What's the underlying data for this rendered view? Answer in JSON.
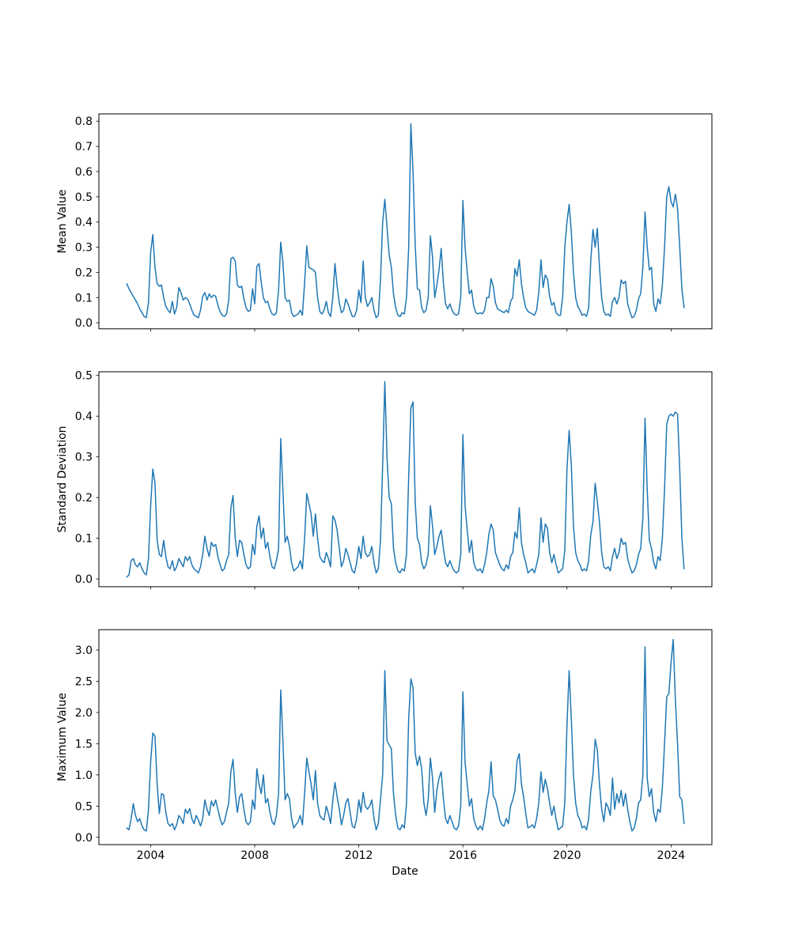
{
  "figure": {
    "background": "#ffffff",
    "title": ""
  },
  "x_axis": {
    "label": "Date",
    "tick_labels": [
      "2004",
      "2008",
      "2012",
      "2016",
      "2020",
      "2024"
    ],
    "tick_values": [
      2004,
      2008,
      2012,
      2016,
      2020,
      2024
    ],
    "xlim": [
      2002.01,
      2025.57
    ],
    "x_start_decimal_year": 2003.0833,
    "x_step_years": 0.0833333
  },
  "line_color": "#1f77b4",
  "chart_data": [
    {
      "type": "line",
      "title": "",
      "ylabel": "Mean Value",
      "xlabel": "",
      "legend": null,
      "grid": false,
      "ylim": [
        -0.024,
        0.829
      ],
      "ytick_values": [
        0.0,
        0.1,
        0.2,
        0.3,
        0.4,
        0.5,
        0.6,
        0.7,
        0.8
      ],
      "ytick_labels": [
        "0.0",
        "0.1",
        "0.2",
        "0.3",
        "0.4",
        "0.5",
        "0.6",
        "0.7",
        "0.8"
      ],
      "values": [
        0.155,
        0.135,
        0.12,
        0.105,
        0.09,
        0.075,
        0.055,
        0.04,
        0.025,
        0.02,
        0.08,
        0.28,
        0.35,
        0.22,
        0.155,
        0.145,
        0.15,
        0.1,
        0.065,
        0.05,
        0.04,
        0.085,
        0.035,
        0.06,
        0.14,
        0.12,
        0.09,
        0.1,
        0.095,
        0.075,
        0.05,
        0.03,
        0.025,
        0.02,
        0.05,
        0.105,
        0.12,
        0.09,
        0.115,
        0.1,
        0.11,
        0.105,
        0.07,
        0.045,
        0.03,
        0.025,
        0.035,
        0.09,
        0.255,
        0.26,
        0.245,
        0.15,
        0.14,
        0.145,
        0.095,
        0.06,
        0.045,
        0.05,
        0.135,
        0.075,
        0.225,
        0.235,
        0.16,
        0.1,
        0.08,
        0.085,
        0.055,
        0.035,
        0.03,
        0.04,
        0.13,
        0.32,
        0.24,
        0.1,
        0.085,
        0.09,
        0.04,
        0.025,
        0.03,
        0.035,
        0.05,
        0.03,
        0.16,
        0.305,
        0.22,
        0.215,
        0.21,
        0.2,
        0.1,
        0.045,
        0.035,
        0.05,
        0.085,
        0.04,
        0.025,
        0.1,
        0.235,
        0.145,
        0.08,
        0.04,
        0.05,
        0.095,
        0.075,
        0.05,
        0.025,
        0.025,
        0.05,
        0.13,
        0.08,
        0.245,
        0.1,
        0.065,
        0.08,
        0.1,
        0.05,
        0.02,
        0.03,
        0.17,
        0.4,
        0.49,
        0.38,
        0.27,
        0.22,
        0.115,
        0.06,
        0.03,
        0.025,
        0.04,
        0.035,
        0.1,
        0.3,
        0.79,
        0.6,
        0.31,
        0.135,
        0.13,
        0.06,
        0.04,
        0.05,
        0.1,
        0.345,
        0.26,
        0.1,
        0.15,
        0.21,
        0.295,
        0.16,
        0.075,
        0.055,
        0.075,
        0.05,
        0.035,
        0.03,
        0.035,
        0.1,
        0.485,
        0.3,
        0.2,
        0.115,
        0.13,
        0.065,
        0.04,
        0.035,
        0.04,
        0.035,
        0.05,
        0.1,
        0.1,
        0.175,
        0.145,
        0.08,
        0.055,
        0.05,
        0.045,
        0.04,
        0.05,
        0.04,
        0.085,
        0.1,
        0.215,
        0.185,
        0.25,
        0.155,
        0.1,
        0.06,
        0.045,
        0.04,
        0.035,
        0.03,
        0.05,
        0.12,
        0.25,
        0.14,
        0.19,
        0.175,
        0.105,
        0.07,
        0.08,
        0.04,
        0.03,
        0.03,
        0.1,
        0.3,
        0.4,
        0.47,
        0.36,
        0.2,
        0.1,
        0.065,
        0.05,
        0.03,
        0.035,
        0.025,
        0.06,
        0.25,
        0.37,
        0.3,
        0.375,
        0.22,
        0.1,
        0.045,
        0.03,
        0.035,
        0.025,
        0.085,
        0.1,
        0.075,
        0.1,
        0.17,
        0.155,
        0.165,
        0.075,
        0.045,
        0.02,
        0.025,
        0.05,
        0.095,
        0.115,
        0.22,
        0.44,
        0.3,
        0.21,
        0.22,
        0.075,
        0.045,
        0.095,
        0.075,
        0.15,
        0.3,
        0.5,
        0.54,
        0.48,
        0.46,
        0.51,
        0.455,
        0.3,
        0.135,
        0.06
      ]
    },
    {
      "type": "line",
      "title": "",
      "ylabel": "Standard Deviation",
      "xlabel": "",
      "legend": null,
      "grid": false,
      "ylim": [
        -0.019,
        0.509
      ],
      "ytick_values": [
        0.0,
        0.1,
        0.2,
        0.3,
        0.4,
        0.5
      ],
      "ytick_labels": [
        "0.0",
        "0.1",
        "0.2",
        "0.3",
        "0.4",
        "0.5"
      ],
      "values": [
        0.005,
        0.01,
        0.045,
        0.05,
        0.035,
        0.03,
        0.04,
        0.025,
        0.015,
        0.01,
        0.05,
        0.18,
        0.27,
        0.235,
        0.095,
        0.06,
        0.055,
        0.095,
        0.055,
        0.03,
        0.025,
        0.045,
        0.02,
        0.03,
        0.05,
        0.04,
        0.03,
        0.055,
        0.045,
        0.055,
        0.035,
        0.025,
        0.02,
        0.015,
        0.03,
        0.06,
        0.105,
        0.075,
        0.055,
        0.09,
        0.08,
        0.085,
        0.055,
        0.035,
        0.02,
        0.025,
        0.045,
        0.06,
        0.175,
        0.205,
        0.1,
        0.055,
        0.095,
        0.09,
        0.06,
        0.035,
        0.025,
        0.03,
        0.085,
        0.06,
        0.13,
        0.155,
        0.1,
        0.125,
        0.075,
        0.09,
        0.055,
        0.03,
        0.025,
        0.045,
        0.075,
        0.345,
        0.22,
        0.09,
        0.105,
        0.08,
        0.04,
        0.02,
        0.025,
        0.03,
        0.045,
        0.025,
        0.1,
        0.21,
        0.185,
        0.16,
        0.105,
        0.16,
        0.1,
        0.055,
        0.045,
        0.04,
        0.065,
        0.05,
        0.03,
        0.155,
        0.145,
        0.12,
        0.075,
        0.03,
        0.045,
        0.075,
        0.06,
        0.04,
        0.02,
        0.015,
        0.04,
        0.08,
        0.05,
        0.105,
        0.065,
        0.055,
        0.06,
        0.08,
        0.04,
        0.015,
        0.025,
        0.095,
        0.28,
        0.485,
        0.3,
        0.2,
        0.185,
        0.075,
        0.04,
        0.02,
        0.015,
        0.025,
        0.02,
        0.06,
        0.25,
        0.42,
        0.435,
        0.19,
        0.1,
        0.085,
        0.04,
        0.025,
        0.035,
        0.06,
        0.18,
        0.13,
        0.06,
        0.08,
        0.105,
        0.12,
        0.075,
        0.04,
        0.03,
        0.045,
        0.03,
        0.02,
        0.015,
        0.02,
        0.06,
        0.355,
        0.18,
        0.12,
        0.065,
        0.095,
        0.04,
        0.025,
        0.02,
        0.025,
        0.015,
        0.035,
        0.065,
        0.11,
        0.135,
        0.12,
        0.065,
        0.05,
        0.035,
        0.025,
        0.02,
        0.035,
        0.025,
        0.055,
        0.065,
        0.115,
        0.1,
        0.175,
        0.09,
        0.06,
        0.04,
        0.015,
        0.02,
        0.025,
        0.015,
        0.035,
        0.06,
        0.15,
        0.09,
        0.135,
        0.125,
        0.065,
        0.04,
        0.06,
        0.035,
        0.015,
        0.02,
        0.025,
        0.07,
        0.27,
        0.365,
        0.28,
        0.13,
        0.065,
        0.045,
        0.035,
        0.02,
        0.025,
        0.02,
        0.045,
        0.11,
        0.14,
        0.235,
        0.19,
        0.14,
        0.065,
        0.03,
        0.025,
        0.03,
        0.02,
        0.055,
        0.075,
        0.05,
        0.065,
        0.1,
        0.085,
        0.09,
        0.05,
        0.03,
        0.015,
        0.02,
        0.035,
        0.06,
        0.075,
        0.15,
        0.395,
        0.22,
        0.095,
        0.075,
        0.04,
        0.025,
        0.055,
        0.045,
        0.1,
        0.22,
        0.38,
        0.4,
        0.405,
        0.4,
        0.41,
        0.405,
        0.27,
        0.1,
        0.025
      ]
    },
    {
      "type": "line",
      "title": "",
      "ylabel": "Maximum Value",
      "xlabel": "Date",
      "legend": null,
      "grid": false,
      "ylim": [
        -0.117,
        3.327
      ],
      "ytick_values": [
        0.0,
        0.5,
        1.0,
        1.5,
        2.0,
        2.5,
        3.0
      ],
      "ytick_labels": [
        "0.0",
        "0.5",
        "1.0",
        "1.5",
        "2.0",
        "2.5",
        "3.0"
      ],
      "values": [
        0.15,
        0.12,
        0.3,
        0.54,
        0.35,
        0.25,
        0.3,
        0.18,
        0.12,
        0.1,
        0.45,
        1.2,
        1.67,
        1.62,
        0.85,
        0.38,
        0.7,
        0.68,
        0.4,
        0.22,
        0.18,
        0.22,
        0.12,
        0.2,
        0.35,
        0.3,
        0.22,
        0.45,
        0.38,
        0.46,
        0.3,
        0.22,
        0.35,
        0.28,
        0.18,
        0.3,
        0.6,
        0.45,
        0.35,
        0.58,
        0.5,
        0.6,
        0.45,
        0.3,
        0.2,
        0.25,
        0.4,
        0.55,
        1.05,
        1.25,
        0.7,
        0.4,
        0.65,
        0.7,
        0.45,
        0.25,
        0.2,
        0.25,
        0.6,
        0.45,
        1.1,
        0.85,
        0.7,
        1.0,
        0.55,
        0.62,
        0.4,
        0.25,
        0.2,
        0.35,
        0.7,
        2.36,
        1.55,
        0.6,
        0.7,
        0.62,
        0.3,
        0.15,
        0.2,
        0.25,
        0.35,
        0.2,
        0.7,
        1.27,
        1.05,
        0.85,
        0.6,
        1.07,
        0.55,
        0.35,
        0.3,
        0.28,
        0.5,
        0.38,
        0.22,
        0.6,
        0.88,
        0.65,
        0.45,
        0.2,
        0.35,
        0.55,
        0.62,
        0.4,
        0.18,
        0.15,
        0.3,
        0.6,
        0.4,
        0.72,
        0.5,
        0.45,
        0.5,
        0.6,
        0.3,
        0.12,
        0.22,
        0.6,
        1.0,
        2.67,
        1.55,
        1.48,
        1.42,
        0.7,
        0.35,
        0.15,
        0.12,
        0.2,
        0.15,
        0.55,
        1.9,
        2.54,
        2.4,
        1.35,
        1.15,
        1.3,
        1.1,
        0.55,
        0.35,
        0.6,
        1.27,
        0.95,
        0.4,
        0.75,
        0.95,
        1.05,
        0.62,
        0.3,
        0.22,
        0.35,
        0.25,
        0.15,
        0.12,
        0.18,
        0.5,
        2.33,
        1.2,
        0.85,
        0.5,
        0.62,
        0.3,
        0.18,
        0.12,
        0.18,
        0.12,
        0.3,
        0.55,
        0.75,
        1.21,
        0.66,
        0.6,
        0.45,
        0.28,
        0.2,
        0.18,
        0.3,
        0.22,
        0.5,
        0.6,
        0.75,
        1.23,
        1.34,
        0.85,
        0.65,
        0.38,
        0.15,
        0.17,
        0.2,
        0.15,
        0.3,
        0.55,
        1.05,
        0.72,
        0.93,
        0.78,
        0.55,
        0.35,
        0.5,
        0.28,
        0.12,
        0.15,
        0.18,
        0.55,
        1.8,
        2.67,
        1.9,
        1.0,
        0.55,
        0.35,
        0.28,
        0.15,
        0.18,
        0.12,
        0.3,
        0.75,
        1.0,
        1.57,
        1.4,
        0.85,
        0.45,
        0.25,
        0.55,
        0.48,
        0.35,
        0.95,
        0.45,
        0.7,
        0.55,
        0.75,
        0.5,
        0.7,
        0.45,
        0.25,
        0.1,
        0.15,
        0.3,
        0.55,
        0.6,
        1.0,
        3.05,
        0.95,
        0.65,
        0.78,
        0.4,
        0.25,
        0.45,
        0.4,
        0.8,
        1.5,
        2.25,
        2.3,
        2.8,
        3.17,
        2.2,
        1.5,
        0.65,
        0.6,
        0.22
      ]
    }
  ]
}
